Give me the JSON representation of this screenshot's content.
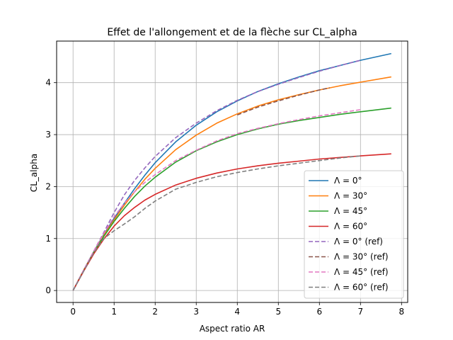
{
  "chart_data": {
    "type": "line",
    "title": "Effet de l'allongement et de la flèche sur CL_alpha",
    "xlabel": "Aspect ratio AR",
    "ylabel": "CL_alpha",
    "xlim": [
      -0.4,
      8.15
    ],
    "ylim": [
      -0.23,
      4.8
    ],
    "xticks": [
      0,
      1,
      2,
      3,
      4,
      5,
      6,
      7,
      8
    ],
    "yticks": [
      0,
      1,
      2,
      3,
      4
    ],
    "grid": true,
    "legend_position": "lower right",
    "series": [
      {
        "name": "Λ = 0°",
        "color": "#1f77b4",
        "dash": "solid",
        "x": [
          0,
          0.25,
          0.5,
          0.75,
          1,
          1.25,
          1.5,
          1.75,
          2,
          2.5,
          3,
          3.5,
          4,
          4.5,
          5,
          5.5,
          6,
          6.5,
          7,
          7.75
        ],
        "y": [
          0,
          0.38,
          0.74,
          1.08,
          1.39,
          1.68,
          1.96,
          2.22,
          2.46,
          2.86,
          3.18,
          3.44,
          3.65,
          3.83,
          3.98,
          4.11,
          4.23,
          4.33,
          4.43,
          4.56
        ]
      },
      {
        "name": "Λ = 30°",
        "color": "#ff7f0e",
        "dash": "solid",
        "x": [
          0,
          0.25,
          0.5,
          0.75,
          1,
          1.25,
          1.5,
          1.75,
          2,
          2.5,
          3,
          3.5,
          4,
          4.5,
          5,
          5.5,
          6,
          6.5,
          7,
          7.75
        ],
        "y": [
          0,
          0.38,
          0.73,
          1.06,
          1.36,
          1.64,
          1.9,
          2.14,
          2.35,
          2.71,
          2.99,
          3.22,
          3.4,
          3.55,
          3.67,
          3.77,
          3.86,
          3.94,
          4.01,
          4.11
        ]
      },
      {
        "name": "Λ = 45°",
        "color": "#2ca02c",
        "dash": "solid",
        "x": [
          0,
          0.25,
          0.5,
          0.75,
          1,
          1.25,
          1.5,
          1.75,
          2,
          2.5,
          3,
          3.5,
          4,
          4.5,
          5,
          5.5,
          6,
          6.5,
          7,
          7.75
        ],
        "y": [
          0,
          0.37,
          0.72,
          1.04,
          1.33,
          1.58,
          1.81,
          2.01,
          2.18,
          2.47,
          2.69,
          2.86,
          3.0,
          3.11,
          3.2,
          3.27,
          3.33,
          3.39,
          3.44,
          3.51
        ]
      },
      {
        "name": "Λ = 60°",
        "color": "#d62728",
        "dash": "solid",
        "x": [
          0,
          0.25,
          0.5,
          0.75,
          1,
          1.25,
          1.5,
          1.75,
          2,
          2.5,
          3,
          3.5,
          4,
          4.5,
          5,
          5.5,
          6,
          6.5,
          7,
          7.75
        ],
        "y": [
          0,
          0.36,
          0.7,
          0.99,
          1.24,
          1.44,
          1.6,
          1.74,
          1.85,
          2.03,
          2.16,
          2.26,
          2.34,
          2.4,
          2.45,
          2.49,
          2.53,
          2.56,
          2.59,
          2.63
        ]
      },
      {
        "name": "Λ = 0° (ref)",
        "color": "#9467bd",
        "dash": "dashed",
        "x": [
          0,
          0.25,
          0.5,
          0.75,
          1,
          1.25,
          1.5,
          1.75,
          2,
          2.5,
          3,
          3.5,
          4,
          4.5,
          5,
          5.5,
          6,
          6.5,
          7
        ],
        "y": [
          0,
          0.38,
          0.75,
          1.12,
          1.5,
          1.84,
          2.12,
          2.36,
          2.58,
          2.94,
          3.22,
          3.46,
          3.66,
          3.83,
          3.97,
          4.1,
          4.22,
          4.33,
          4.43
        ]
      },
      {
        "name": "Λ = 30° (ref)",
        "color": "#8c564b",
        "dash": "dashed",
        "x": [
          4,
          4.5,
          5,
          5.5,
          6,
          6.25
        ],
        "y": [
          3.38,
          3.53,
          3.65,
          3.76,
          3.86,
          3.9
        ]
      },
      {
        "name": "Λ = 45° (ref)",
        "color": "#e377c2",
        "dash": "dashed",
        "x": [
          0,
          0.25,
          0.5,
          0.75,
          1,
          1.25,
          1.5,
          1.75,
          2,
          2.5,
          3,
          3.5,
          4,
          4.5,
          5,
          5.5,
          6,
          6.5,
          7
        ],
        "y": [
          0,
          0.38,
          0.75,
          1.1,
          1.42,
          1.68,
          1.9,
          2.08,
          2.23,
          2.5,
          2.7,
          2.88,
          3.02,
          3.12,
          3.21,
          3.29,
          3.36,
          3.42,
          3.48
        ]
      },
      {
        "name": "Λ = 60° (ref)",
        "color": "#7f7f7f",
        "dash": "dashed",
        "x": [
          0,
          0.25,
          0.5,
          0.75,
          1,
          1.25,
          1.5,
          1.75,
          2,
          2.5,
          3,
          3.5,
          4,
          4.5,
          5,
          5.5,
          6,
          6.5,
          7
        ],
        "y": [
          0,
          0.36,
          0.72,
          1.0,
          1.15,
          1.28,
          1.42,
          1.58,
          1.72,
          1.95,
          2.08,
          2.19,
          2.27,
          2.34,
          2.4,
          2.45,
          2.5,
          2.55,
          2.59
        ]
      }
    ]
  }
}
